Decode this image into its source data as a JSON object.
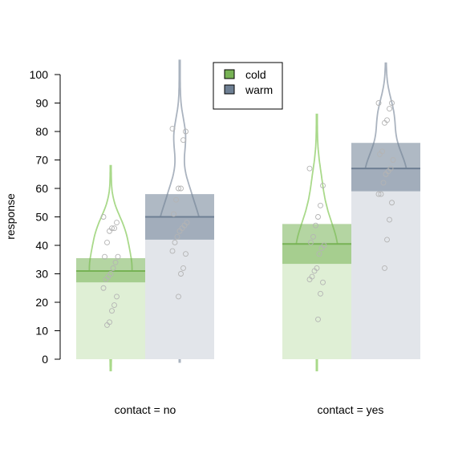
{
  "chart_data": {
    "type": "bar",
    "ylabel": "response",
    "ylim": [
      0,
      100
    ],
    "yticks": [
      0,
      10,
      20,
      30,
      40,
      50,
      60,
      70,
      80,
      90,
      100
    ],
    "categories": [
      "contact = no",
      "contact = yes"
    ],
    "grid": false,
    "legend_position": "top-center",
    "series": [
      {
        "name": "cold",
        "color": "#77b255",
        "light_color": "#dfefd5",
        "values": [
          31,
          40.5
        ],
        "ci": [
          [
            27,
            35.5
          ],
          [
            33.5,
            47.5
          ]
        ],
        "points": [
          [
            50,
            48,
            46,
            46,
            45,
            41,
            36,
            36,
            34,
            32,
            30,
            29,
            28,
            25,
            22,
            19,
            17,
            13,
            12
          ],
          [
            67,
            61,
            54,
            50,
            47,
            43,
            41,
            40,
            39,
            37,
            32,
            31,
            29,
            28,
            27,
            23,
            14
          ]
        ]
      },
      {
        "name": "warm",
        "color": "#6e7f93",
        "light_color": "#e2e5ea",
        "values": [
          50,
          67
        ],
        "ci": [
          [
            42,
            58
          ],
          [
            59,
            76
          ]
        ],
        "points": [
          [
            81,
            80,
            77,
            60,
            60,
            56,
            51,
            48,
            47,
            46,
            45,
            43,
            41,
            38,
            37,
            32,
            30,
            22
          ],
          [
            90,
            90,
            88,
            84,
            83,
            73,
            72,
            70,
            67,
            66,
            65,
            62,
            58,
            58,
            55,
            49,
            42,
            32
          ]
        ]
      }
    ]
  }
}
